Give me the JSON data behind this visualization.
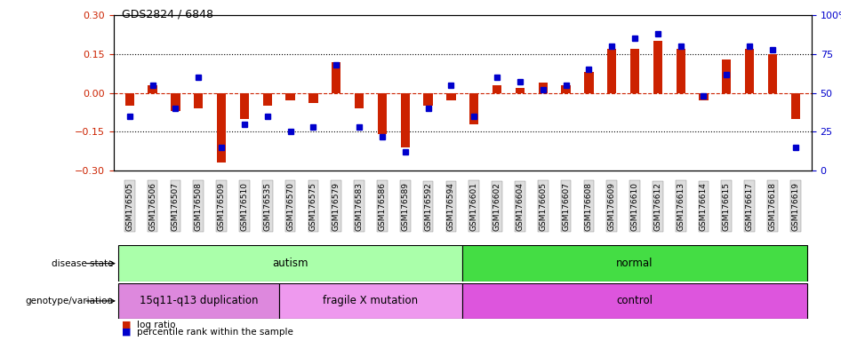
{
  "title": "GDS2824 / 6848",
  "samples": [
    "GSM176505",
    "GSM176506",
    "GSM176507",
    "GSM176508",
    "GSM176509",
    "GSM176510",
    "GSM176535",
    "GSM176570",
    "GSM176575",
    "GSM176579",
    "GSM176583",
    "GSM176586",
    "GSM176589",
    "GSM176592",
    "GSM176594",
    "GSM176601",
    "GSM176602",
    "GSM176604",
    "GSM176605",
    "GSM176607",
    "GSM176608",
    "GSM176609",
    "GSM176610",
    "GSM176612",
    "GSM176613",
    "GSM176614",
    "GSM176615",
    "GSM176617",
    "GSM176618",
    "GSM176619"
  ],
  "log_ratio": [
    -0.05,
    0.03,
    -0.07,
    -0.06,
    -0.27,
    -0.1,
    -0.05,
    -0.03,
    -0.04,
    0.12,
    -0.06,
    -0.16,
    -0.21,
    -0.05,
    -0.03,
    -0.12,
    0.03,
    0.02,
    0.04,
    0.03,
    0.08,
    0.17,
    0.17,
    0.2,
    0.17,
    -0.03,
    0.13,
    0.17,
    0.15,
    -0.1
  ],
  "percentile": [
    35,
    55,
    40,
    60,
    15,
    30,
    35,
    25,
    28,
    68,
    28,
    22,
    12,
    40,
    55,
    35,
    60,
    57,
    52,
    55,
    65,
    80,
    85,
    88,
    80,
    48,
    62,
    80,
    78,
    15
  ],
  "disease_state_groups": [
    {
      "label": "autism",
      "start": 0,
      "end": 14,
      "color": "#aaffaa"
    },
    {
      "label": "normal",
      "start": 15,
      "end": 29,
      "color": "#44dd44"
    }
  ],
  "genotype_groups": [
    {
      "label": "15q11-q13 duplication",
      "start": 0,
      "end": 6,
      "color": "#dd88dd"
    },
    {
      "label": "fragile X mutation",
      "start": 7,
      "end": 14,
      "color": "#ee99ee"
    },
    {
      "label": "control",
      "start": 15,
      "end": 29,
      "color": "#dd55dd"
    }
  ],
  "bar_color": "#cc2200",
  "dot_color": "#0000cc",
  "hline_color": "#cc2200",
  "ylim_left": [
    -0.3,
    0.3
  ],
  "ylim_right": [
    0,
    100
  ],
  "yticks_left": [
    -0.3,
    -0.15,
    0,
    0.15,
    0.3
  ],
  "yticks_right": [
    0,
    25,
    50,
    75,
    100
  ],
  "grid_lines": [
    -0.15,
    0.15
  ],
  "legend_items": [
    {
      "label": "log ratio",
      "color": "#cc2200"
    },
    {
      "label": "percentile rank within the sample",
      "color": "#0000cc"
    }
  ],
  "tick_bg_color": "#dddddd",
  "axis_left_color": "#cc2200",
  "axis_right_color": "#0000cc"
}
